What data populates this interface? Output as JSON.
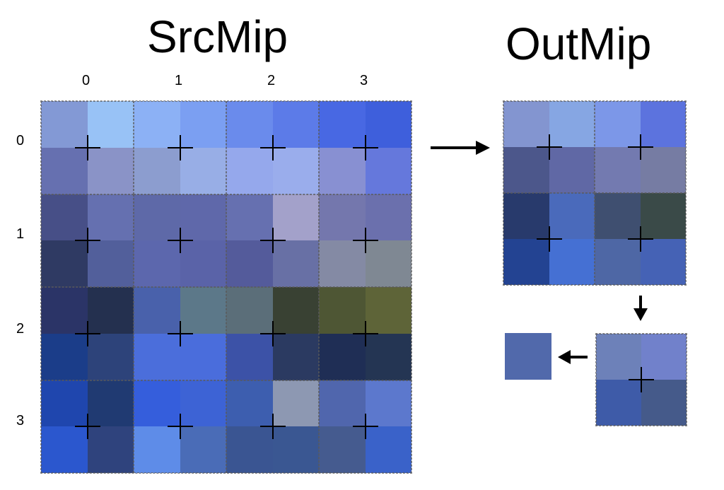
{
  "src_title": "SrcMip",
  "out_title": "OutMip",
  "col_labels": [
    "0",
    "1",
    "2",
    "3"
  ],
  "row_labels": [
    "0",
    "1",
    "2",
    "3"
  ],
  "src_colors": [
    [
      "#8399d5",
      "#98c2f6",
      "#8cb1f5",
      "#7b9ff2",
      "#6a8bec",
      "#5c7be8",
      "#4868e3",
      "#3e5fdc"
    ],
    [
      "#6670b0",
      "#8a93c7",
      "#8c9dcf",
      "#98aee6",
      "#95a8ec",
      "#9aadec",
      "#8890d2",
      "#6578dc"
    ],
    [
      "#474f87",
      "#6570b0",
      "#5e69a8",
      "#5f68aa",
      "#6670b0",
      "#a3a1ca",
      "#7477ad",
      "#6b70ad"
    ],
    [
      "#2f3a63",
      "#525f9b",
      "#5c67ad",
      "#5a63a8",
      "#545b9b",
      "#6870a5",
      "#848aa4",
      "#7f8893"
    ],
    [
      "#2b3467",
      "#24304f",
      "#4961ab",
      "#5c7889",
      "#5b6e79",
      "#394133",
      "#4e5634",
      "#5e6438"
    ],
    [
      "#1b3d89",
      "#2d437a",
      "#4b6edb",
      "#4a6ddc",
      "#3c52a7",
      "#2b3a61",
      "#1f2e55",
      "#243553"
    ],
    [
      "#1f46ae",
      "#203a72",
      "#355edc",
      "#3d63d5",
      "#3d5eaf",
      "#8d98b2",
      "#5066ad",
      "#5c78cd"
    ],
    [
      "#2b57ce",
      "#2f437d",
      "#5e8ce8",
      "#4a6cb7",
      "#3a5592",
      "#3a5792",
      "#455b8f",
      "#3a62c9"
    ]
  ],
  "out_colors": [
    [
      "#8395d0",
      "#86a6e3",
      "#7c97e8",
      "#5c73de"
    ],
    [
      "#4c578b",
      "#6068a5",
      "#737ab0",
      "#767ca3"
    ],
    [
      "#283a6c",
      "#4a6abb",
      "#3f4f70",
      "#3a4a48"
    ],
    [
      "#234392",
      "#4570d3",
      "#4e67a5",
      "#4562b5"
    ]
  ],
  "mip2_colors": [
    [
      "#6d81b9",
      "#7181cb"
    ],
    [
      "#3e5ba8",
      "#455a8a"
    ]
  ],
  "final_color": "#5169ab"
}
